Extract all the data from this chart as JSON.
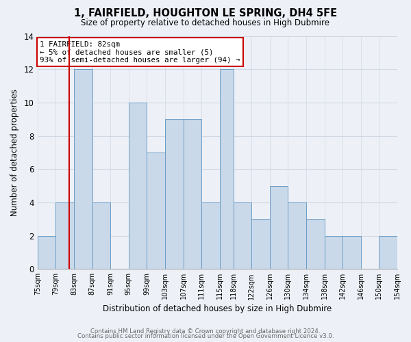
{
  "title": "1, FAIRFIELD, HOUGHTON LE SPRING, DH4 5FE",
  "subtitle": "Size of property relative to detached houses in High Dubmire",
  "xlabel": "Distribution of detached houses by size in High Dubmire",
  "ylabel": "Number of detached properties",
  "footer_line1": "Contains HM Land Registry data © Crown copyright and database right 2024.",
  "footer_line2": "Contains public sector information licensed under the Open Government Licence v3.0.",
  "annotation_title": "1 FAIRFIELD: 82sqm",
  "annotation_line1": "← 5% of detached houses are smaller (5)",
  "annotation_line2": "93% of semi-detached houses are larger (94) →",
  "bar_lefts": [
    75,
    79,
    83,
    87,
    91,
    95,
    99,
    103,
    107,
    111,
    115,
    118,
    122,
    126,
    130,
    134,
    138,
    142,
    146,
    150
  ],
  "bar_rights": [
    79,
    83,
    87,
    91,
    95,
    99,
    103,
    107,
    111,
    115,
    118,
    122,
    126,
    130,
    134,
    138,
    142,
    146,
    150,
    154
  ],
  "bar_heights": [
    2,
    4,
    12,
    4,
    0,
    10,
    7,
    9,
    9,
    4,
    12,
    4,
    3,
    5,
    4,
    3,
    2,
    2,
    0,
    2
  ],
  "bar_color": "#c9d9ea",
  "bar_edge_color": "#6b9cc4",
  "property_line_x": 82,
  "property_line_color": "#cc0000",
  "annotation_box_color": "#ffffff",
  "annotation_box_edge_color": "#cc0000",
  "ylim": [
    0,
    14
  ],
  "yticks": [
    0,
    2,
    4,
    6,
    8,
    10,
    12,
    14
  ],
  "grid_color": "#d0d8e4",
  "background_color": "#edf1f7",
  "xtick_labels": [
    "75sqm",
    "79sqm",
    "83sqm",
    "87sqm",
    "91sqm",
    "95sqm",
    "99sqm",
    "103sqm",
    "107sqm",
    "111sqm",
    "115sqm",
    "118sqm",
    "122sqm",
    "126sqm",
    "130sqm",
    "134sqm",
    "138sqm",
    "142sqm",
    "146sqm",
    "150sqm",
    "154sqm"
  ]
}
